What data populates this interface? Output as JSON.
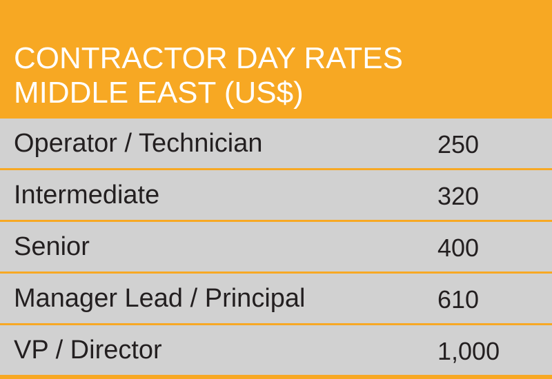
{
  "chart_data": {
    "type": "table",
    "title_lines": [
      "CONTRACTOR DAY RATES",
      "MIDDLE EAST (US$)"
    ],
    "rows": [
      {
        "label": "Operator / Technician",
        "value": "250"
      },
      {
        "label": "Intermediate",
        "value": "320"
      },
      {
        "label": "Senior",
        "value": "400"
      },
      {
        "label": "Manager Lead / Principal",
        "value": "610"
      },
      {
        "label": "VP / Director",
        "value": "1,000"
      }
    ]
  },
  "colors": {
    "header_background": "#f7a823",
    "row_background": "#d1d1d1",
    "title_text": "#ffffff",
    "body_text": "#231f20"
  }
}
